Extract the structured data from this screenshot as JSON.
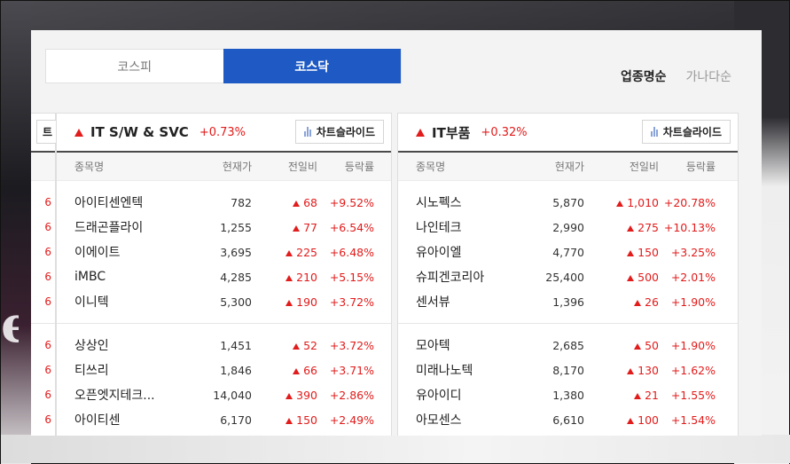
{
  "market_tabs": [
    {
      "label": "코스피",
      "active": false
    },
    {
      "label": "코스닥",
      "active": true
    }
  ],
  "sort_options": [
    {
      "label": "업종명순",
      "active": true
    },
    {
      "label": "가나다순",
      "active": false
    }
  ],
  "left_stub": {
    "button_label": "트",
    "rate_suffix": "6"
  },
  "columns": {
    "name": "종목명",
    "price": "현재가",
    "diff": "전일비",
    "rate": "등락률"
  },
  "chart_button_label": "차트슬라이드",
  "colors": {
    "accent": "#1f5ac4",
    "up": "#e21b1b"
  },
  "sectors": [
    {
      "title": "IT S/W & SVC",
      "change": "+0.73%",
      "groups": [
        [
          {
            "name": "아이티센엔텍",
            "price": "782",
            "diff": "68",
            "rate": "+9.52%"
          },
          {
            "name": "드래곤플라이",
            "price": "1,255",
            "diff": "77",
            "rate": "+6.54%"
          },
          {
            "name": "이에이트",
            "price": "3,695",
            "diff": "225",
            "rate": "+6.48%"
          },
          {
            "name": "iMBC",
            "price": "4,285",
            "diff": "210",
            "rate": "+5.15%"
          },
          {
            "name": "이니텍",
            "price": "5,300",
            "diff": "190",
            "rate": "+3.72%"
          }
        ],
        [
          {
            "name": "상상인",
            "price": "1,451",
            "diff": "52",
            "rate": "+3.72%"
          },
          {
            "name": "티쓰리",
            "price": "1,846",
            "diff": "66",
            "rate": "+3.71%"
          },
          {
            "name": "오픈엣지테크...",
            "price": "14,040",
            "diff": "390",
            "rate": "+2.86%"
          },
          {
            "name": "아이티센",
            "price": "6,170",
            "diff": "150",
            "rate": "+2.49%"
          }
        ]
      ]
    },
    {
      "title": "IT부품",
      "change": "+0.32%",
      "groups": [
        [
          {
            "name": "시노펙스",
            "price": "5,870",
            "diff": "1,010",
            "rate": "+20.78%"
          },
          {
            "name": "나인테크",
            "price": "2,990",
            "diff": "275",
            "rate": "+10.13%"
          },
          {
            "name": "유아이엘",
            "price": "4,770",
            "diff": "150",
            "rate": "+3.25%"
          },
          {
            "name": "슈피겐코리아",
            "price": "25,400",
            "diff": "500",
            "rate": "+2.01%"
          },
          {
            "name": "센서뷰",
            "price": "1,396",
            "diff": "26",
            "rate": "+1.90%"
          }
        ],
        [
          {
            "name": "모아텍",
            "price": "2,685",
            "diff": "50",
            "rate": "+1.90%"
          },
          {
            "name": "미래나노텍",
            "price": "8,170",
            "diff": "130",
            "rate": "+1.62%"
          },
          {
            "name": "유아이디",
            "price": "1,380",
            "diff": "21",
            "rate": "+1.55%"
          },
          {
            "name": "아모센스",
            "price": "6,610",
            "diff": "100",
            "rate": "+1.54%"
          }
        ]
      ]
    }
  ]
}
